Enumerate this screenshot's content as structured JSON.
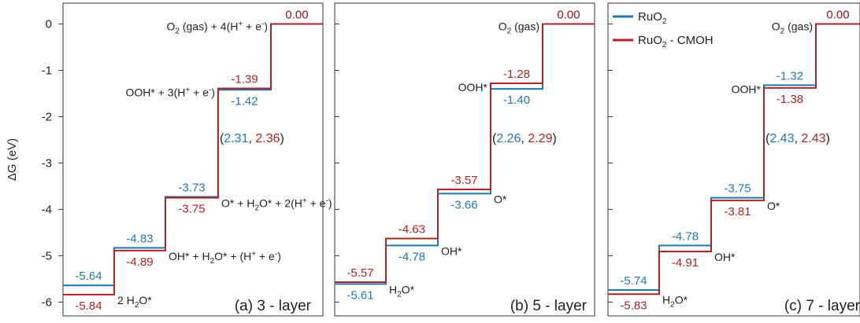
{
  "colors": {
    "ruo2": "#1f77b4",
    "cmoh": "#b22222",
    "axis": "#333333",
    "text": "#222222"
  },
  "chart_data": {
    "type": "line",
    "ylabel": "ΔG (eV)",
    "ylim": [
      -6.3,
      0.45
    ],
    "yticks": [
      0,
      -1,
      -2,
      -3,
      -4,
      -5,
      -6
    ],
    "legend": {
      "placement": "top-left of panel (c)",
      "entries": [
        "RuO2",
        "RuO2 - CMOH"
      ]
    },
    "panels": [
      {
        "label": "(a) 3 - layer",
        "series": [
          {
            "name": "RuO2",
            "values": [
              -5.64,
              -4.83,
              -3.73,
              -1.42,
              0.0
            ]
          },
          {
            "name": "RuO2 - CMOH",
            "values": [
              -5.84,
              -4.89,
              -3.75,
              -1.39,
              0.0
            ]
          }
        ],
        "value_labels": {
          "RuO2": [
            "-5.64",
            "-4.83",
            "-3.73",
            "-1.42",
            "0.00"
          ],
          "RuO2 - CMOH": [
            "-5.84",
            "-4.89",
            "-3.75",
            "-1.39",
            "0.00"
          ]
        },
        "intermediates": [
          "2 H2O*",
          "OH* + H2O* + (H+ + e-)",
          "O* + H2O* + 2(H+ + e-)",
          "OOH* + 3(H+ + e-)",
          "O2 (gas) + 4(H+ + e-)"
        ],
        "overpotential": {
          "ruo2": "2.31",
          "cmoh": "2.36"
        }
      },
      {
        "label": "(b) 5 - layer",
        "series": [
          {
            "name": "RuO2",
            "values": [
              -5.61,
              -4.78,
              -3.66,
              -1.4,
              0.0
            ]
          },
          {
            "name": "RuO2 - CMOH",
            "values": [
              -5.57,
              -4.63,
              -3.57,
              -1.28,
              0.0
            ]
          }
        ],
        "value_labels": {
          "RuO2": [
            "-5.61",
            "-4.78",
            "-3.66",
            "-1.40",
            "0.00"
          ],
          "RuO2 - CMOH": [
            "-5.57",
            "-4.63",
            "-3.57",
            "-1.28",
            "0.00"
          ]
        },
        "intermediates": [
          "H2O*",
          "OH*",
          "O*",
          "OOH*",
          "O2 (gas)"
        ],
        "overpotential": {
          "ruo2": "2.26",
          "cmoh": "2.29"
        }
      },
      {
        "label": "(c) 7 - layer",
        "series": [
          {
            "name": "RuO2",
            "values": [
              -5.74,
              -4.78,
              -3.75,
              -1.32,
              0.0
            ]
          },
          {
            "name": "RuO2 - CMOH",
            "values": [
              -5.83,
              -4.91,
              -3.81,
              -1.38,
              0.0
            ]
          }
        ],
        "value_labels": {
          "RuO2": [
            "-5.74",
            "-4.78",
            "-3.75",
            "-1.32",
            "0.00"
          ],
          "RuO2 - CMOH": [
            "-5.83",
            "-4.91",
            "-3.81",
            "-1.38",
            "0.00"
          ]
        },
        "intermediates": [
          "H2O*",
          "OH*",
          "O*",
          "OOH*",
          "O2 (gas)"
        ],
        "overpotential": {
          "ruo2": "2.43",
          "cmoh": "2.43"
        }
      }
    ]
  }
}
